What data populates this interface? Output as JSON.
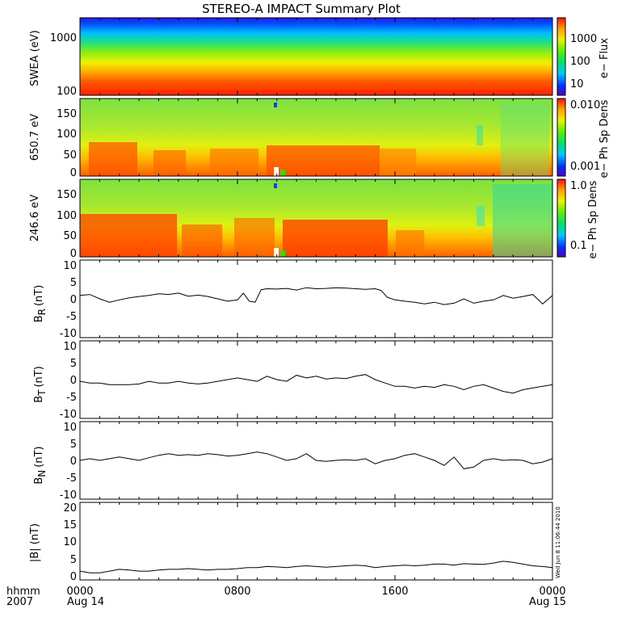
{
  "title": "STEREO-A IMPACT Summary Plot",
  "footer": {
    "time_format_label": "hhmm",
    "year_label": "2007"
  },
  "timestamp": "Wed Jun 8 11:06:44 2010",
  "chart_data": [
    {
      "type": "heatmap",
      "ylabel": "SWEA (eV)",
      "y_scale": "log",
      "ylim": [
        90,
        2000
      ],
      "y_tick_labels": [
        "1000",
        "100"
      ],
      "colorbar": {
        "label": "e− Flux",
        "tick_labels": [
          "1000",
          "100",
          "10"
        ],
        "range": [
          2,
          10000
        ],
        "scale": "log"
      },
      "description_bands": [
        "high energy low flux (blue)",
        "mid energy (green/yellow)",
        "low energy high flux (red)"
      ]
    },
    {
      "type": "heatmap",
      "ylabel": "650.7 eV",
      "ylim": [
        0,
        180
      ],
      "y_tick_labels": [
        "150",
        "100",
        "50",
        "0"
      ],
      "colorbar": {
        "label": "e− Ph Sp Dens",
        "tick_labels": [
          "0.010",
          "0.001"
        ],
        "range": [
          0.0007,
          0.014
        ],
        "scale": "log"
      }
    },
    {
      "type": "heatmap",
      "ylabel": "246.6 eV",
      "ylim": [
        0,
        180
      ],
      "y_tick_labels": [
        "150",
        "100",
        "50",
        "0"
      ],
      "colorbar": {
        "label": "e− Ph Sp Dens",
        "tick_labels": [
          "1.0",
          "0.1"
        ],
        "range": [
          0.06,
          1.1
        ],
        "scale": "log"
      }
    },
    {
      "type": "line",
      "ylabel": "B",
      "ylabel_sub": "R",
      "ylabel_unit": "(nT)",
      "ylim": [
        -12,
        11
      ],
      "y_tick_labels": [
        "10",
        "5",
        "0",
        "-5",
        "-10"
      ],
      "x_hours": [
        0,
        0.5,
        1,
        1.5,
        2,
        2.5,
        3,
        3.5,
        4,
        4.5,
        5,
        5.5,
        6,
        6.5,
        7,
        7.5,
        8,
        8.3,
        8.6,
        8.9,
        9.2,
        9.5,
        10,
        10.5,
        11,
        11.5,
        12,
        12.5,
        13,
        13.5,
        14,
        14.5,
        15,
        15.3,
        15.6,
        16,
        16.5,
        17,
        17.5,
        18,
        18.5,
        19,
        19.5,
        20,
        20.5,
        21,
        21.5,
        22,
        22.5,
        23,
        23.5,
        24
      ],
      "values": [
        0.5,
        0.8,
        -0.5,
        -1.5,
        -0.8,
        -0.2,
        0.2,
        0.5,
        1,
        0.8,
        1.2,
        0.3,
        0.6,
        0.2,
        -0.5,
        -1.2,
        -0.8,
        1.2,
        -1.2,
        -1.5,
        2.2,
        2.5,
        2.4,
        2.6,
        2.1,
        2.8,
        2.5,
        2.6,
        2.8,
        2.7,
        2.5,
        2.3,
        2.5,
        2.0,
        0.0,
        -0.8,
        -1.2,
        -1.5,
        -2,
        -1.5,
        -2.2,
        -1.8,
        -0.5,
        -1.8,
        -1.2,
        -0.8,
        0.5,
        -0.3,
        0.2,
        0.8,
        -2,
        0.5
      ]
    },
    {
      "type": "line",
      "ylabel": "B",
      "ylabel_sub": "T",
      "ylabel_unit": "(nT)",
      "ylim": [
        -12,
        11
      ],
      "y_tick_labels": [
        "10",
        "5",
        "0",
        "-5",
        "-10"
      ],
      "x_hours": [
        0,
        0.5,
        1,
        1.5,
        2,
        2.5,
        3,
        3.5,
        4,
        4.5,
        5,
        5.5,
        6,
        6.5,
        7,
        7.5,
        8,
        8.5,
        9,
        9.5,
        10,
        10.5,
        11,
        11.5,
        12,
        12.5,
        13,
        13.5,
        14,
        14.5,
        15,
        15.5,
        16,
        16.5,
        17,
        17.5,
        18,
        18.5,
        19,
        19.5,
        20,
        20.5,
        21,
        21.5,
        22,
        22.5,
        23,
        23.5,
        24
      ],
      "values": [
        -1,
        -1.5,
        -1.5,
        -2,
        -2,
        -2,
        -1.8,
        -1,
        -1.5,
        -1.5,
        -1,
        -1.5,
        -1.8,
        -1.5,
        -1,
        -0.5,
        0,
        -0.5,
        -1,
        0.5,
        -0.5,
        -1,
        0.8,
        0,
        0.5,
        -0.3,
        0,
        -0.2,
        0.5,
        1,
        -0.5,
        -1.5,
        -2.5,
        -2.5,
        -3,
        -2.5,
        -2.8,
        -2,
        -2.5,
        -3.5,
        -2.5,
        -2,
        -3,
        -4,
        -4.5,
        -3.5,
        -3,
        -2.5,
        -2
      ]
    },
    {
      "type": "line",
      "ylabel": "B",
      "ylabel_sub": "N",
      "ylabel_unit": "(nT)",
      "ylim": [
        -12,
        11
      ],
      "y_tick_labels": [
        "10",
        "5",
        "0",
        "-5",
        "-10"
      ],
      "x_hours": [
        0,
        0.5,
        1,
        1.5,
        2,
        2.5,
        3,
        3.5,
        4,
        4.5,
        5,
        5.5,
        6,
        6.5,
        7,
        7.5,
        8,
        8.5,
        9,
        9.5,
        10,
        10.5,
        11,
        11.5,
        12,
        12.5,
        13,
        13.5,
        14,
        14.5,
        15,
        15.5,
        16,
        16.5,
        17,
        17.5,
        18,
        18.5,
        19,
        19.5,
        20,
        20.5,
        21,
        21.5,
        22,
        22.5,
        23,
        23.5,
        24
      ],
      "values": [
        -0.5,
        0,
        -0.5,
        0,
        0.5,
        0,
        -0.5,
        0.3,
        1,
        1.5,
        1,
        1.2,
        1,
        1.5,
        1.2,
        0.8,
        1,
        1.5,
        2,
        1.5,
        0.5,
        -0.5,
        0,
        1.5,
        -0.5,
        -0.8,
        -0.5,
        -0.3,
        -0.5,
        0,
        -1.5,
        -0.5,
        0,
        1,
        1.5,
        0.5,
        -0.5,
        -2,
        0.5,
        -3,
        -2.5,
        -0.5,
        0,
        -0.5,
        -0.3,
        -0.5,
        -1.5,
        -1,
        0
      ]
    },
    {
      "type": "line",
      "ylabel": "|B| (nT)",
      "ylim": [
        -1,
        21
      ],
      "y_tick_labels": [
        "20",
        "15",
        "10",
        "5",
        "0"
      ],
      "x_hours": [
        0,
        0.5,
        1,
        1.5,
        2,
        2.5,
        3,
        3.5,
        4,
        4.5,
        5,
        5.5,
        6,
        6.5,
        7,
        7.5,
        8,
        8.5,
        9,
        9.5,
        10,
        10.5,
        11,
        11.5,
        12,
        12.5,
        13,
        13.5,
        14,
        14.5,
        15,
        15.5,
        16,
        16.5,
        17,
        17.5,
        18,
        18.5,
        19,
        19.5,
        20,
        20.5,
        21,
        21.5,
        22,
        22.5,
        23,
        23.5,
        24
      ],
      "values": [
        1.5,
        1,
        1,
        1.5,
        2,
        1.8,
        1.5,
        1.5,
        1.8,
        2,
        2,
        2.2,
        2,
        1.8,
        2,
        2,
        2.2,
        2.5,
        2.5,
        2.8,
        2.7,
        2.5,
        2.8,
        3,
        2.8,
        2.6,
        2.8,
        3,
        3.2,
        3,
        2.5,
        2.8,
        3,
        3.2,
        3,
        3.2,
        3.5,
        3.5,
        3.2,
        3.6,
        3.5,
        3.4,
        3.8,
        4.3,
        4,
        3.5,
        3,
        2.8,
        2.5
      ]
    }
  ],
  "x_axis": {
    "tick_labels": [
      "0000",
      "0800",
      "1600",
      "0000"
    ],
    "date_labels": [
      "Aug 14",
      "Aug 15"
    ],
    "range_hours": [
      0,
      24
    ]
  }
}
